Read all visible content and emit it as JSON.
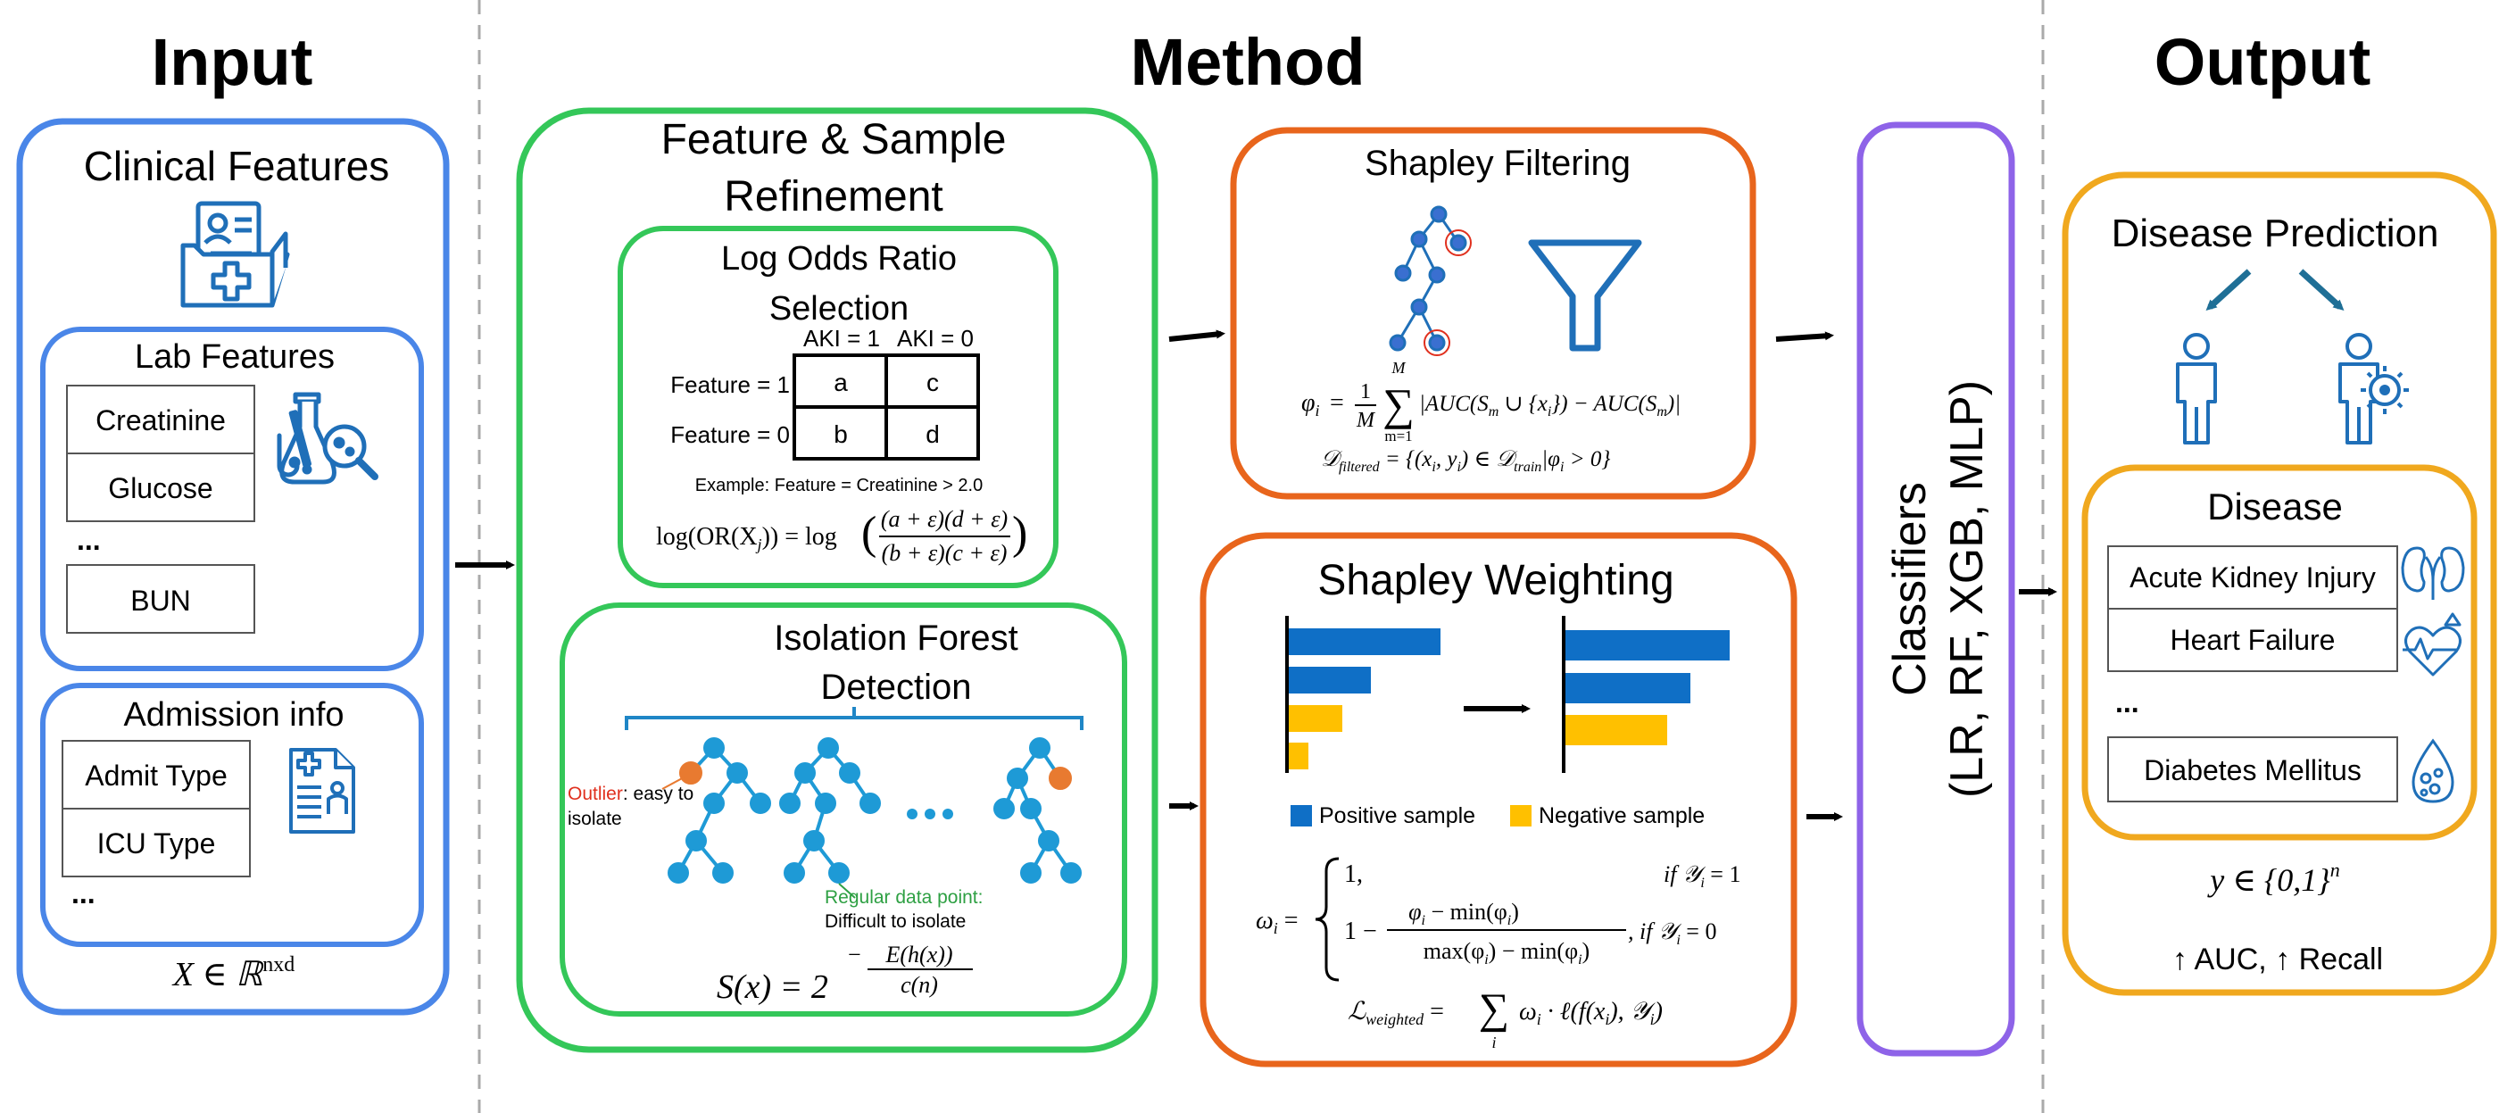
{
  "sections": {
    "input_title": "Input",
    "method_title": "Method",
    "output_title": "Output"
  },
  "input": {
    "clinical_title": "Clinical Features",
    "lab_title": "Lab Features",
    "lab_items": [
      "Creatinine",
      "Glucose",
      "...",
      "BUN"
    ],
    "admission_title": "Admission info",
    "admission_items": [
      "Admit Type",
      "ICU Type",
      "..."
    ],
    "formula": "X ∈ ℝ",
    "formula_sup": "nxd"
  },
  "refinement": {
    "title_line1": "Feature & Sample",
    "title_line2": "Refinement",
    "log_odds": {
      "title_line1": "Log Odds Ratio",
      "title_line2": "Selection",
      "col_headers": [
        "AKI = 1",
        "AKI = 0"
      ],
      "row_headers": [
        "Feature = 1",
        "Feature = 0"
      ],
      "cells": [
        "a",
        "c",
        "b",
        "d"
      ],
      "example": "Example: Feature = Creatinine > 2.0",
      "formula_lhs": "log(OR(X",
      "formula_lhs_sub": "j",
      "formula_lhs_end": ")) = log",
      "formula_num": "(a + ε)(d + ε)",
      "formula_den": "(b + ε)(c + ε)"
    },
    "isolation": {
      "title_line1": "Isolation Forest",
      "title_line2": "Detection",
      "outlier_word": "Outlier",
      "outlier_rest": ": easy to",
      "outlier_line2": "isolate",
      "regular_line1": "Regular data point:",
      "regular_line2": "Difficult to isolate",
      "formula_lhs": "S(x) = 2",
      "exp_num": "E(h(x))",
      "exp_den": "c(n)",
      "exp_sign": "−"
    }
  },
  "shapley_filtering": {
    "title": "Shapley Filtering",
    "formula1_lhs": "φ",
    "formula1_lhs_sub": "i",
    "formula1_eq": "=",
    "formula1_frac_num": "1",
    "formula1_frac_den": "M",
    "formula1_sum_top": "M",
    "formula1_sum_bottom": "m=1",
    "formula1_body": "|AUC(S",
    "formula1_body_sub": "m",
    "formula1_body2": " ∪ {x",
    "formula1_body2_sub": "i",
    "formula1_body3": "}) − AUC(S",
    "formula1_body3_sub": "m",
    "formula1_body4": ")|",
    "formula2_lhs": "𝒟",
    "formula2_lhs_sub": "filtered",
    "formula2_rhs": " = {(x",
    "formula2_rhs_sub1": "i",
    "formula2_rhs2": ", y",
    "formula2_rhs_sub2": "i",
    "formula2_rhs3": ") ∈ 𝒟",
    "formula2_rhs_sub3": "train",
    "formula2_rhs4": "|φ",
    "formula2_rhs_sub4": "i",
    "formula2_rhs5": " > 0}"
  },
  "shapley_weighting": {
    "title": "Shapley Weighting",
    "legend_positive": "Positive sample",
    "legend_negative": "Negative sample",
    "formula_lhs": "ω",
    "formula_lhs_sub": "i",
    "case1": "1,",
    "case1_cond": "if 𝒴",
    "case1_cond_sub": "i",
    "case1_cond_end": " = 1",
    "case2_prefix": "1 −",
    "case2_num": "φ",
    "case2_num_sub": "i",
    "case2_num_end": " − min(φ",
    "case2_num_sub2": "i",
    "case2_num_close": ")",
    "case2_den": "max(φ",
    "case2_den_sub": "i",
    "case2_den_mid": ") − min(φ",
    "case2_den_sub2": "i",
    "case2_den_close": ")",
    "case2_cond": ", if 𝒴",
    "case2_cond_sub": "i",
    "case2_cond_end": " = 0",
    "loss_lhs": "ℒ",
    "loss_lhs_sub": "weighted",
    "loss_eq": " = ",
    "loss_sum_sub": "i",
    "loss_body": "ω",
    "loss_body_sub": "i",
    "loss_body2": " · ℓ(f(x",
    "loss_body2_sub": "i",
    "loss_body3": "), 𝒴",
    "loss_body3_sub": "i",
    "loss_body4": ")"
  },
  "classifiers": {
    "line1": "Classifiers",
    "line2": "(LR, RF, XGB, MLP)"
  },
  "output": {
    "prediction_title": "Disease Prediction",
    "disease_title": "Disease",
    "diseases": [
      "Acute Kidney Injury",
      "Heart Failure",
      "...",
      "Diabetes Mellitus"
    ],
    "formula": "y ∈ {0,1}",
    "formula_sup": "n",
    "metrics": "↑ AUC, ↑ Recall"
  },
  "colors": {
    "blue": "#4a86e8",
    "green": "#34c759",
    "orange": "#e8651c",
    "purple": "#8e63e8",
    "gold": "#f0a81e",
    "icon_blue": "#1f6fb8",
    "bar_blue": "#0f6fc6",
    "bar_yellow": "#ffc000",
    "outlier_red": "#e0301e",
    "regular_green": "#2ea043"
  }
}
